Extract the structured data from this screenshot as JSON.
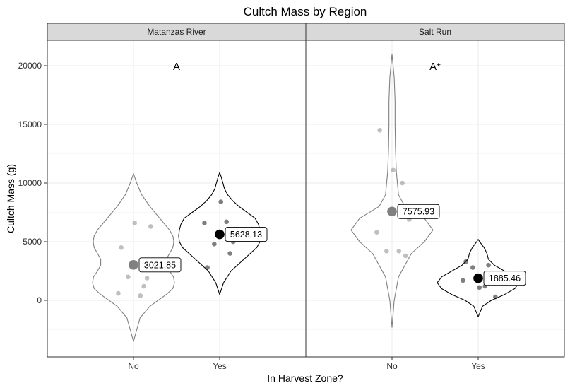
{
  "chart_data": {
    "type": "violin",
    "title": "Cultch Mass by Region",
    "xlabel": "In Harvest Zone?",
    "ylabel": "Cultch Mass (g)",
    "categories": [
      "No",
      "Yes"
    ],
    "yticks": [
      0,
      5000,
      10000,
      15000,
      20000
    ],
    "ylim": [
      -4800,
      22000
    ],
    "grid": true,
    "panels": [
      {
        "strip": "Matanzas River",
        "significance": "A",
        "groups": [
          {
            "category": "No",
            "color": "#808080",
            "mean": 3021.85,
            "mean_label": "3021.85",
            "points": [
              600,
              400,
              2000,
              1900,
              1200,
              4500,
              6600,
              6300
            ],
            "density": [
              [
                -3500,
                0
              ],
              [
                -2500,
                1
              ],
              [
                -1500,
                2
              ],
              [
                -500,
                5
              ],
              [
                500,
                10
              ],
              [
                1000,
                12
              ],
              [
                1500,
                12.5
              ],
              [
                2000,
                12.2
              ],
              [
                2500,
                11
              ],
              [
                3000,
                10
              ],
              [
                3500,
                10
              ],
              [
                4000,
                11
              ],
              [
                4500,
                12
              ],
              [
                5000,
                12.3
              ],
              [
                5500,
                12
              ],
              [
                6000,
                11
              ],
              [
                7000,
                8
              ],
              [
                8000,
                5
              ],
              [
                9000,
                2.5
              ],
              [
                10000,
                1
              ],
              [
                10800,
                0
              ]
            ]
          },
          {
            "category": "Yes",
            "color": "#000000",
            "mean": 5628.13,
            "mean_label": "5628.13",
            "points": [
              6600,
              6700,
              4800,
              5000,
              4000,
              2800,
              8400
            ],
            "density": [
              [
                500,
                0
              ],
              [
                1500,
                1.2
              ],
              [
                2500,
                3.5
              ],
              [
                3500,
                7.5
              ],
              [
                4500,
                11.5
              ],
              [
                5000,
                12.5
              ],
              [
                5500,
                12.7
              ],
              [
                6000,
                12.5
              ],
              [
                6500,
                12
              ],
              [
                7000,
                11
              ],
              [
                7500,
                8.5
              ],
              [
                8000,
                6
              ],
              [
                8500,
                4
              ],
              [
                9000,
                2.5
              ],
              [
                9500,
                1.5
              ],
              [
                10000,
                1
              ],
              [
                10500,
                0.5
              ],
              [
                10900,
                0
              ]
            ]
          }
        ]
      },
      {
        "strip": "Salt Run",
        "significance": "A*",
        "groups": [
          {
            "category": "No",
            "color": "#808080",
            "mean": 7575.93,
            "mean_label": "7575.93",
            "points": [
              5800,
              4200,
              4200,
              3800,
              10000,
              14500,
              11100,
              6900
            ],
            "density": [
              [
                -2300,
                0
              ],
              [
                0,
                0.5
              ],
              [
                2000,
                1.5
              ],
              [
                4000,
                4.5
              ],
              [
                5000,
                7.5
              ],
              [
                6000,
                9.5
              ],
              [
                7000,
                7.5
              ],
              [
                8000,
                3
              ],
              [
                9000,
                1.5
              ],
              [
                11000,
                1
              ],
              [
                13000,
                0.8
              ],
              [
                15000,
                0.7
              ],
              [
                17000,
                0.7
              ],
              [
                19000,
                0.5
              ],
              [
                21000,
                0
              ]
            ]
          },
          {
            "category": "Yes",
            "color": "#000000",
            "mean": 1885.46,
            "mean_label": "1885.46",
            "points": [
              1700,
              1200,
              2800,
              1500,
              3000,
              3300,
              1100,
              300
            ],
            "density": [
              [
                -1400,
                0
              ],
              [
                -500,
                1.5
              ],
              [
                0,
                4.5
              ],
              [
                500,
                9
              ],
              [
                1000,
                12.5
              ],
              [
                1500,
                14
              ],
              [
                2000,
                12.5
              ],
              [
                2500,
                9
              ],
              [
                3000,
                5.5
              ],
              [
                3500,
                3.5
              ],
              [
                4000,
                3
              ],
              [
                4500,
                2
              ],
              [
                5000,
                0.5
              ],
              [
                5200,
                0
              ]
            ]
          }
        ]
      }
    ]
  }
}
